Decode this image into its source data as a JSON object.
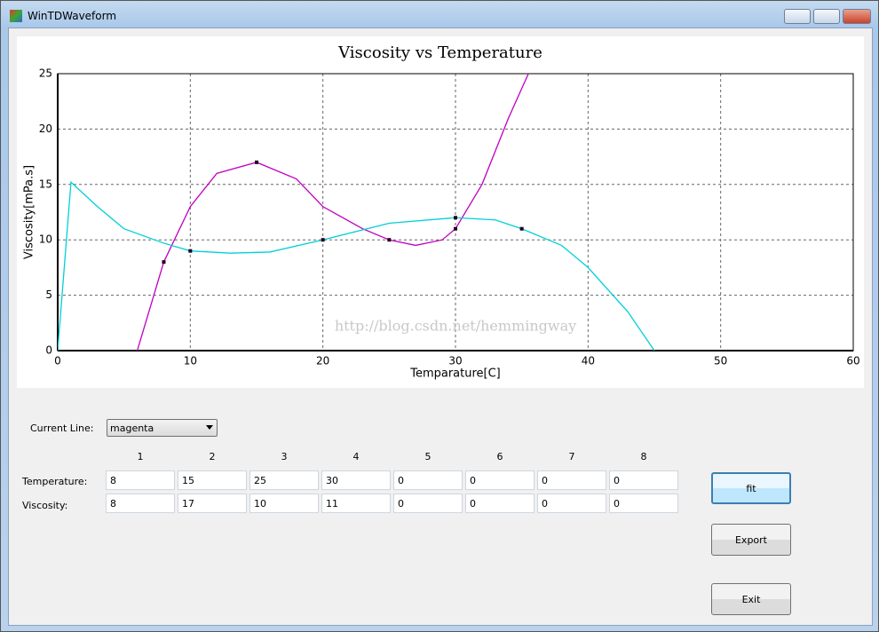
{
  "window": {
    "title": "WinTDWaveform"
  },
  "chart_data": {
    "type": "line",
    "title": "Viscosity vs Temperature",
    "x_label": "Temparature[C]",
    "y_label": "Viscosity[mPa.s]",
    "watermark": "http://blog.csdn.net/hemmingway",
    "xlim": [
      0,
      60
    ],
    "ylim": [
      0,
      25
    ],
    "xticks": [
      0,
      10,
      20,
      30,
      40,
      50,
      60
    ],
    "yticks": [
      0,
      5,
      10,
      15,
      20,
      25
    ],
    "grid": true,
    "series": [
      {
        "color": "#c000c0",
        "x": [
          6,
          8,
          10,
          12,
          15,
          18,
          20,
          23,
          25,
          27,
          29,
          30,
          32,
          34,
          35.5
        ],
        "values": [
          0,
          8,
          13,
          16,
          17,
          15.5,
          13,
          11,
          10,
          9.5,
          10,
          11,
          15,
          21,
          25
        ],
        "points_x": [
          8,
          15,
          25,
          30
        ],
        "points_y": [
          8,
          17,
          10,
          11
        ]
      },
      {
        "color": "#00d0d8",
        "x": [
          0,
          1,
          3,
          5,
          8,
          10,
          13,
          16,
          20,
          25,
          30,
          33,
          35,
          38,
          40,
          43,
          45
        ],
        "values": [
          0,
          15.2,
          13,
          11,
          9.7,
          9,
          8.8,
          8.9,
          10,
          11.5,
          12,
          11.8,
          11,
          9.5,
          7.5,
          3.5,
          0
        ],
        "points_x": [
          10,
          20,
          30,
          35
        ],
        "points_y": [
          9,
          10,
          12,
          11
        ]
      }
    ]
  },
  "form": {
    "current_line_label": "Current Line:",
    "current_line_value": "magenta",
    "columns": [
      "1",
      "2",
      "3",
      "4",
      "5",
      "6",
      "7",
      "8"
    ],
    "temperature_label": "Temperature:",
    "viscosity_label": "Viscosity:",
    "temperature": [
      "8",
      "15",
      "25",
      "30",
      "0",
      "0",
      "0",
      "0"
    ],
    "viscosity": [
      "8",
      "17",
      "10",
      "11",
      "0",
      "0",
      "0",
      "0"
    ],
    "buttons": [
      "fit",
      "Export",
      "Exit"
    ]
  }
}
